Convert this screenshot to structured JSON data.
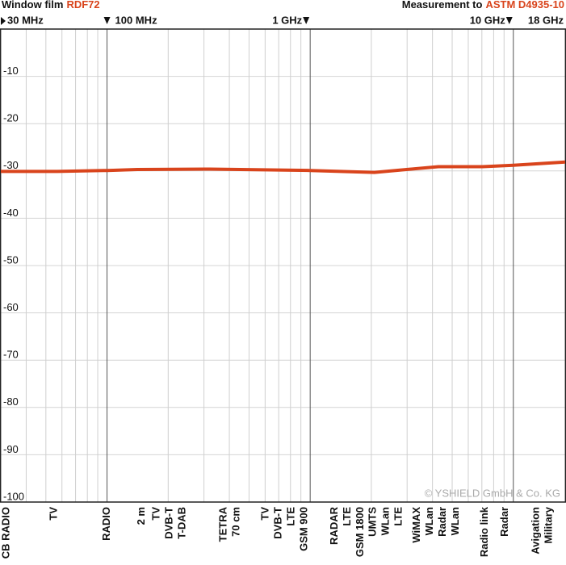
{
  "chart_data": {
    "type": "line",
    "title_left": "Window film",
    "title_left_highlight": "RDF72",
    "title_right": "Measurement to",
    "title_right_highlight": "ASTM D4935-10",
    "copyright": "© YSHIELD GmbH & Co. KG",
    "x": [
      30,
      57,
      100,
      141,
      320,
      1000,
      2070,
      4280,
      7050,
      10000,
      18000
    ],
    "values": [
      -30.1,
      -30.1,
      -29.9,
      -29.7,
      -29.6,
      -29.9,
      -30.3,
      -29.1,
      -29.1,
      -28.8,
      -28.1
    ],
    "color": "#d9441c",
    "xscale": "log",
    "xlim": [
      30,
      18000
    ],
    "xticks": [
      {
        "value": 30,
        "label": "30 MHz"
      },
      {
        "value": 100,
        "label": "100 MHz"
      },
      {
        "value": 1000,
        "label": "1 GHz"
      },
      {
        "value": 10000,
        "label": "10 GHz"
      },
      {
        "value": 18000,
        "label": "18 GHz"
      }
    ],
    "minor_xticks": [
      40,
      50,
      60,
      70,
      80,
      90,
      200,
      300,
      400,
      500,
      600,
      700,
      800,
      900,
      2000,
      3000,
      4000,
      5000,
      6000,
      7000,
      8000,
      9000
    ],
    "ylim": [
      -100,
      0
    ],
    "yticks": [
      -10,
      -20,
      -30,
      -40,
      -50,
      -60,
      -70,
      -80,
      -90,
      -100
    ],
    "grid": true,
    "bands": [
      {
        "freq": 32,
        "lines": [
          "CB RADIO"
        ]
      },
      {
        "freq": 55,
        "lines": [
          "TV"
        ]
      },
      {
        "freq": 100,
        "lines": [
          "RADIO"
        ]
      },
      {
        "freq": 148,
        "lines": [
          "2 m"
        ]
      },
      {
        "freq": 235,
        "lines": [
          "TV",
          "DVB-T",
          "T-DAB"
        ]
      },
      {
        "freq": 435,
        "lines": [
          "TETRA",
          "70 cm"
        ]
      },
      {
        "freq": 936,
        "lines": [
          "TV",
          "DVB-T",
          "LTE",
          "GSM 900"
        ]
      },
      {
        "freq": 1770,
        "lines": [
          "RADAR",
          "LTE",
          "GSM 1800"
        ]
      },
      {
        "freq": 2740,
        "lines": [
          "UMTS",
          "WLan",
          "LTE"
        ]
      },
      {
        "freq": 5220,
        "lines": [
          "WiMAX",
          "WLan",
          "Radar",
          "WLan"
        ]
      },
      {
        "freq": 7250,
        "lines": [
          "Radio link"
        ]
      },
      {
        "freq": 9100,
        "lines": [
          "Radar"
        ]
      },
      {
        "freq": 15000,
        "lines": [
          "Avigation",
          "Military"
        ]
      }
    ]
  }
}
